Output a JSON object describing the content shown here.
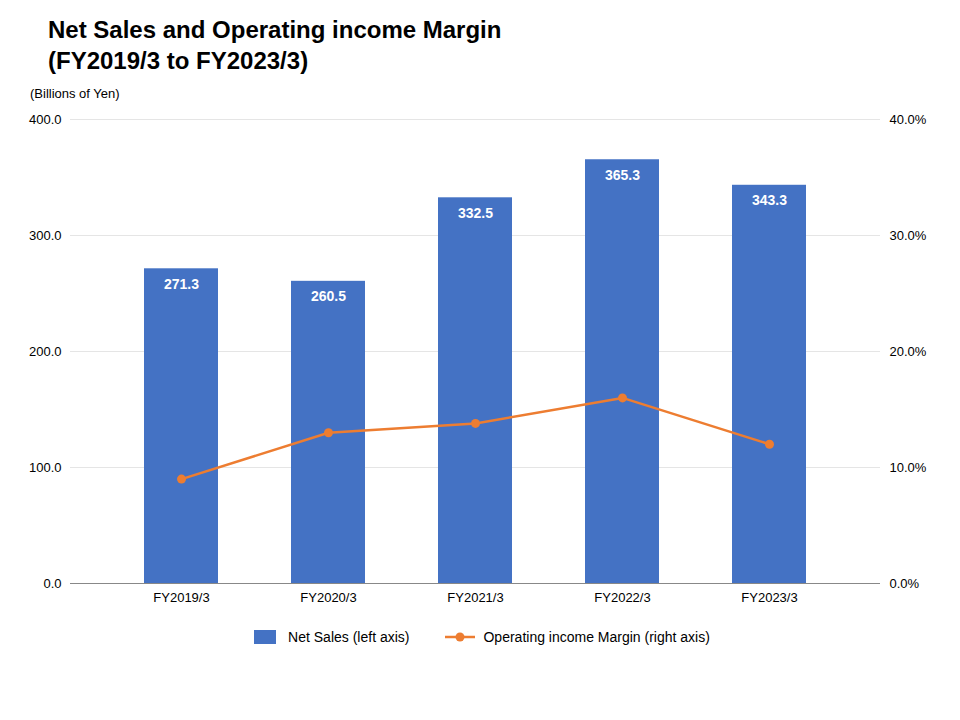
{
  "chart_data": {
    "type": "bar",
    "title": "Net Sales and Operating income Margin",
    "subtitle": "(FY2019/3 to FY2023/3)",
    "categories": [
      "FY2019/3",
      "FY2020/3",
      "FY2021/3",
      "FY2022/3",
      "FY2023/3"
    ],
    "series": [
      {
        "name": "Net Sales (left axis)",
        "type": "bar",
        "color": "#4472C4",
        "values": [
          271.3,
          260.5,
          332.5,
          365.3,
          343.3
        ],
        "data_labels": true
      },
      {
        "name": "Operating income Margin (right axis)",
        "type": "line",
        "color": "#ED7D31",
        "marker": "circle",
        "axis": "y2",
        "values": [
          0.09,
          0.13,
          0.138,
          0.16,
          0.12
        ]
      }
    ],
    "ylabel": "(Billions of Yen)",
    "ylim": [
      0,
      400
    ],
    "yticks": [
      {
        "value": 0,
        "label": "0.0"
      },
      {
        "value": 100,
        "label": "100.0"
      },
      {
        "value": 200,
        "label": "200.0"
      },
      {
        "value": 300,
        "label": "300.0"
      },
      {
        "value": 400,
        "label": "400.0"
      }
    ],
    "y2lim": [
      0,
      0.4
    ],
    "y2ticks": [
      {
        "value": 0,
        "label": "0.0%"
      },
      {
        "value": 0.1,
        "label": "10.0%"
      },
      {
        "value": 0.2,
        "label": "20.0%"
      },
      {
        "value": 0.3,
        "label": "30.0%"
      },
      {
        "value": 0.4,
        "label": "40.0%"
      }
    ],
    "grid": true,
    "legend": "bottom"
  }
}
